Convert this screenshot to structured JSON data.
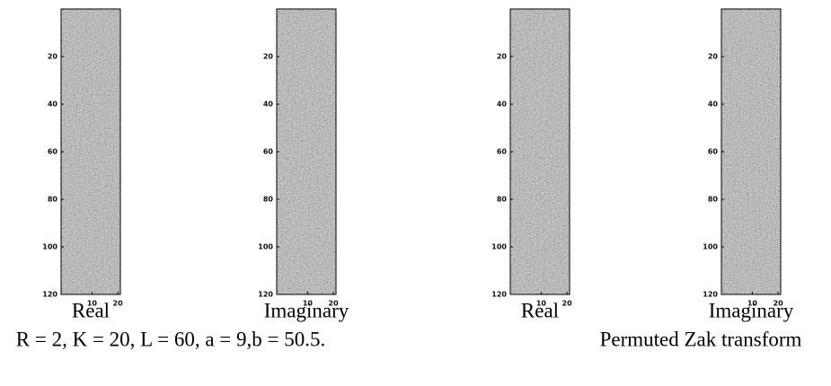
{
  "chart_data": [
    {
      "type": "image",
      "xlabel": "Real",
      "xlim": [
        -2,
        21
      ],
      "ylim": [
        0,
        120
      ],
      "xticks": [
        10,
        20
      ],
      "yticks": [
        20,
        40,
        60,
        80,
        100,
        120
      ]
    },
    {
      "type": "image",
      "xlabel": "Imaginary",
      "xlim": [
        -2,
        21
      ],
      "ylim": [
        0,
        120
      ],
      "xticks": [
        10,
        20
      ],
      "yticks": [
        20,
        40,
        60,
        80,
        100,
        120
      ]
    },
    {
      "type": "image",
      "xlabel": "Real",
      "xlim": [
        -2,
        21
      ],
      "ylim": [
        0,
        120
      ],
      "xticks": [
        10,
        20
      ],
      "yticks": [
        20,
        40,
        60,
        80,
        100,
        120
      ]
    },
    {
      "type": "image",
      "xlabel": "Imaginary",
      "xlim": [
        -2,
        21
      ],
      "ylim": [
        0,
        120
      ],
      "xticks": [
        10,
        20
      ],
      "yticks": [
        20,
        40,
        60,
        80,
        100,
        120
      ]
    }
  ],
  "captions": [
    "R = 2, K = 20, L = 60, a = 9,b = 50.5.",
    "Permuted Zak transform"
  ]
}
